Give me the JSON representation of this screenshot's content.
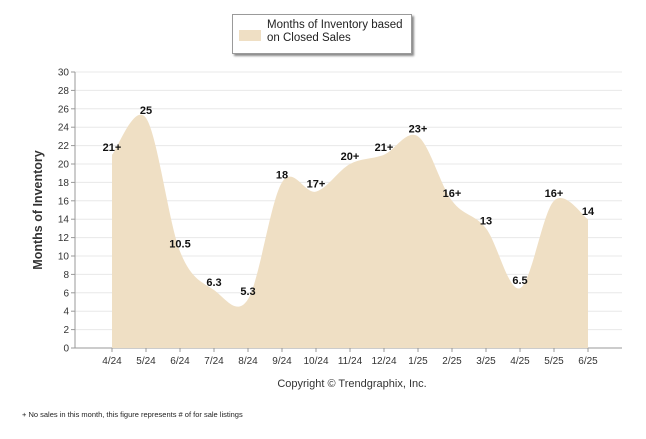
{
  "legend": {
    "label": "Months of Inventory based on Closed Sales"
  },
  "copyright": "Copyright © Trendgraphix, Inc.",
  "footnote": "+ No sales in this month, this figure represents # of for sale listings",
  "colors": {
    "area": "#efdfc4",
    "grid": "#e8e8e8",
    "axis": "#999999"
  },
  "chart_data": {
    "type": "area",
    "ylabel": "Months of Inventory",
    "xlabel": "",
    "ylim": [
      0,
      30
    ],
    "yticks": [
      0,
      2,
      4,
      6,
      8,
      10,
      12,
      14,
      16,
      18,
      20,
      22,
      24,
      26,
      28,
      30
    ],
    "grid": true,
    "legend_position": "top",
    "categories": [
      "4/24",
      "5/24",
      "6/24",
      "7/24",
      "8/24",
      "9/24",
      "10/24",
      "11/24",
      "12/24",
      "1/25",
      "2/25",
      "3/25",
      "4/25",
      "5/25",
      "6/25"
    ],
    "series": [
      {
        "name": "Months of Inventory based on Closed Sales",
        "values": [
          21,
          25,
          10.5,
          6.3,
          5.3,
          18,
          17,
          20,
          21,
          23,
          16,
          13,
          6.5,
          16,
          14
        ],
        "labels": [
          "21+",
          "25",
          "10.5",
          "6.3",
          "5.3",
          "18",
          "17+",
          "20+",
          "21+",
          "23+",
          "16+",
          "13",
          "6.5",
          "16+",
          "14"
        ]
      }
    ]
  }
}
